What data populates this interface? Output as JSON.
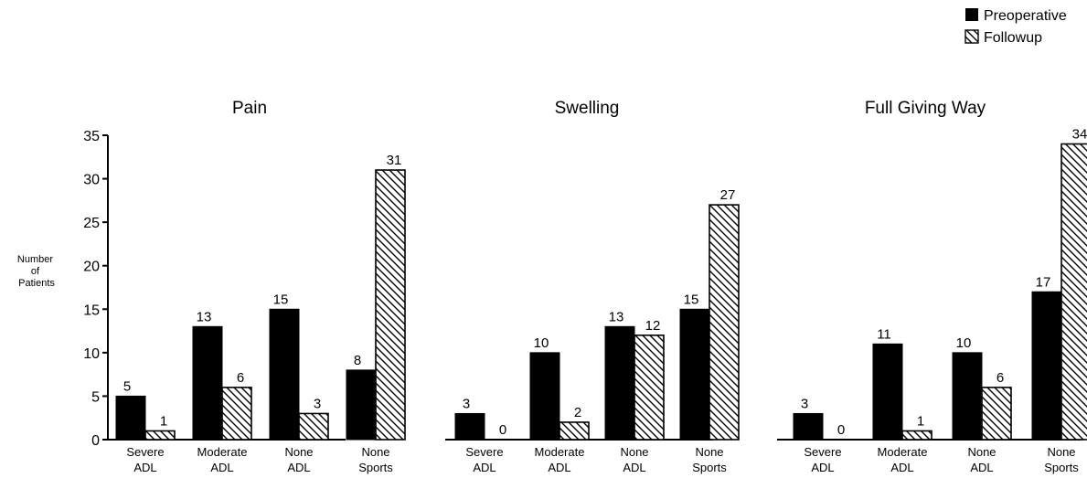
{
  "chart_data": {
    "type": "bar",
    "ylabel": "Number of Patients",
    "ylim": [
      0,
      35
    ],
    "yticks": [
      0,
      5,
      10,
      15,
      20,
      25,
      30,
      35
    ],
    "grid": false,
    "legend": {
      "position": "top-right",
      "entries": [
        {
          "name": "Preoperative",
          "fill": "solid-black"
        },
        {
          "name": "Followup",
          "fill": "diagonal-hatch"
        }
      ]
    },
    "categories": [
      [
        "Severe",
        "ADL"
      ],
      [
        "Moderate",
        "ADL"
      ],
      [
        "None",
        "ADL"
      ],
      [
        "None",
        "Sports"
      ]
    ],
    "panels": [
      {
        "title": "Pain",
        "series": [
          {
            "name": "Preoperative",
            "values": [
              5,
              13,
              15,
              8
            ]
          },
          {
            "name": "Followup",
            "values": [
              1,
              6,
              3,
              31
            ]
          }
        ]
      },
      {
        "title": "Swelling",
        "series": [
          {
            "name": "Preoperative",
            "values": [
              3,
              10,
              13,
              15
            ]
          },
          {
            "name": "Followup",
            "values": [
              0,
              2,
              12,
              27
            ]
          }
        ]
      },
      {
        "title": "Full Giving Way",
        "series": [
          {
            "name": "Preoperative",
            "values": [
              3,
              11,
              10,
              17
            ]
          },
          {
            "name": "Followup",
            "values": [
              0,
              1,
              6,
              34
            ]
          }
        ]
      }
    ],
    "colors": {
      "preoperative": "#000000",
      "followup_stroke": "#000000",
      "background": "#ffffff"
    }
  }
}
